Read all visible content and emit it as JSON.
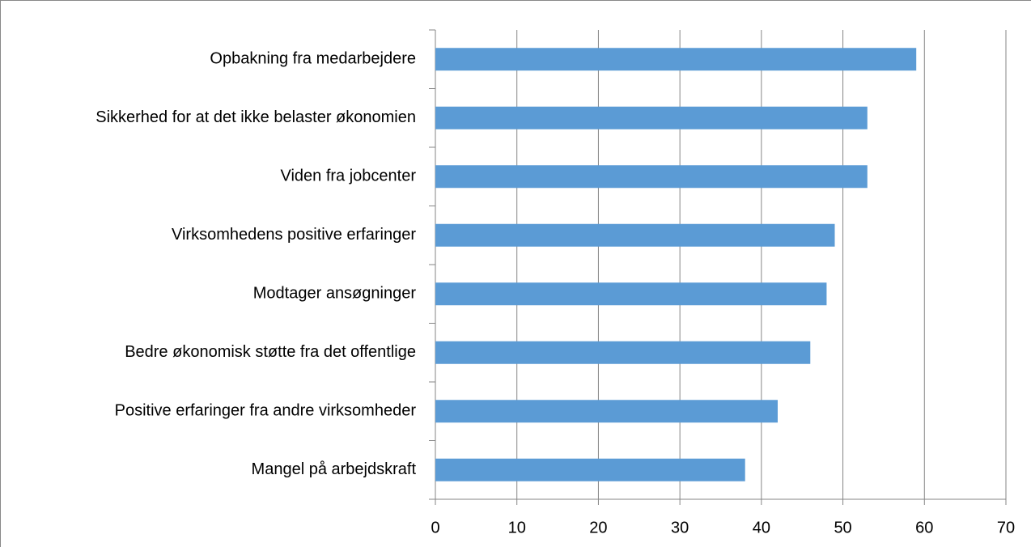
{
  "chart_data": {
    "type": "bar",
    "orientation": "horizontal",
    "categories": [
      "Opbakning fra medarbejdere",
      "Sikkerhed for at det ikke belaster økonomien",
      "Viden fra jobcenter",
      "Virksomhedens positive erfaringer",
      "Modtager ansøgninger",
      "Bedre økonomisk støtte fra det offentlige",
      "Positive erfaringer fra andre virksomheder",
      "Mangel på arbejdskraft"
    ],
    "values": [
      59,
      53,
      53,
      49,
      48,
      46,
      42,
      38
    ],
    "color": "#5b9bd5",
    "xlim": [
      0,
      70
    ],
    "xticks": [
      0,
      10,
      20,
      30,
      40,
      50,
      60,
      70
    ],
    "grid": true
  }
}
